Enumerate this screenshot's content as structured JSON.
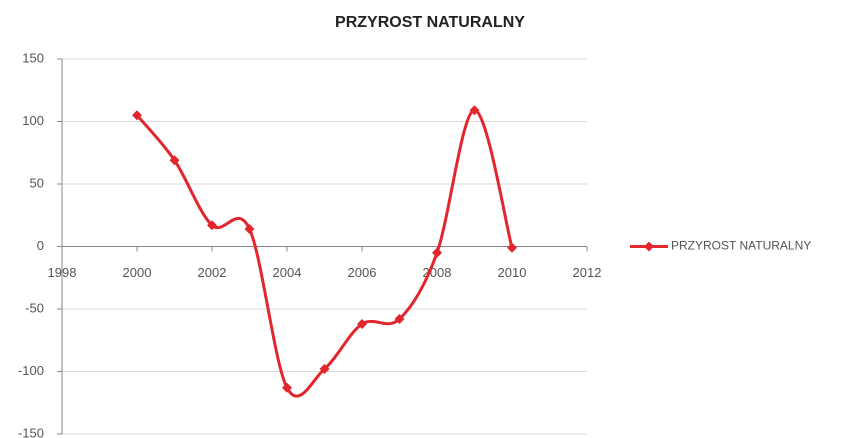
{
  "chart_data": {
    "type": "line",
    "title": "PRZYROST NATURALNY",
    "x": [
      2000,
      2001,
      2002,
      2003,
      2004,
      2005,
      2006,
      2007,
      2008,
      2009,
      2010
    ],
    "series": [
      {
        "name": "PRZYROST NATURALNY",
        "color": "#e3262e",
        "values": [
          105,
          69,
          17,
          14,
          -113,
          -98,
          -62,
          -58,
          -5,
          109,
          -1
        ]
      }
    ],
    "xlim": [
      1998,
      2012
    ],
    "xticks": [
      1998,
      2000,
      2002,
      2004,
      2006,
      2008,
      2010,
      2012
    ],
    "ylim": [
      -150,
      150
    ],
    "yticks": [
      -150,
      -100,
      -50,
      0,
      50,
      100,
      150
    ],
    "grid": true,
    "smooth": true,
    "legend": "right"
  }
}
